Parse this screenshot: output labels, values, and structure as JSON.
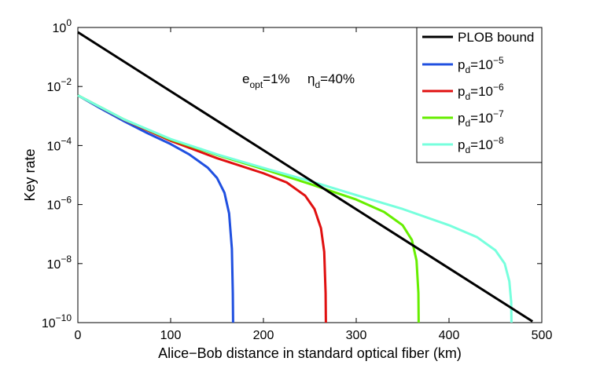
{
  "chart_data": {
    "type": "line",
    "title": "",
    "xlabel": "Alice−Bob distance in standard optical fiber (km)",
    "ylabel": "Key rate",
    "xlim": [
      0,
      500
    ],
    "ylim_log10": [
      -10,
      0
    ],
    "yscale": "log",
    "x_ticks": [
      0,
      100,
      200,
      300,
      400,
      500
    ],
    "y_ticks_exponent": [
      -10,
      -8,
      -6,
      -4,
      -2,
      0
    ],
    "y_tick_base": "10",
    "grid": false,
    "legend_position": "top-right",
    "annotations": [
      {
        "id": "eopt",
        "base": "e",
        "sub": "opt",
        "suffix": "=1%"
      },
      {
        "id": "etad",
        "base": "η",
        "sub": "d",
        "suffix": "=40%"
      }
    ],
    "series": [
      {
        "name": "PLOB bound",
        "legend_label": "PLOB bound",
        "color": "#000000",
        "x": [
          0,
          100,
          200,
          300,
          400,
          490
        ],
        "log10_y": [
          -0.16,
          -2.16,
          -4.16,
          -6.16,
          -8.16,
          -9.96
        ]
      },
      {
        "name": "pd=10^-5",
        "legend_base": "p",
        "legend_sub": "d",
        "legend_mid": "=10",
        "legend_sup": "−5",
        "color": "#2050e0",
        "x": [
          0,
          25,
          50,
          75,
          100,
          120,
          140,
          150,
          158,
          163,
          166,
          167,
          167.3
        ],
        "log10_y": [
          -2.3,
          -2.75,
          -3.18,
          -3.58,
          -3.95,
          -4.3,
          -4.75,
          -5.1,
          -5.6,
          -6.3,
          -7.5,
          -9.0,
          -10
        ]
      },
      {
        "name": "pd=10^-6",
        "legend_base": "p",
        "legend_sub": "d",
        "legend_mid": "=10",
        "legend_sup": "−6",
        "color": "#e01010",
        "x": [
          0,
          50,
          100,
          150,
          200,
          225,
          245,
          255,
          262,
          265.5,
          267,
          267.3
        ],
        "log10_y": [
          -2.3,
          -3.13,
          -3.84,
          -4.43,
          -4.94,
          -5.25,
          -5.7,
          -6.15,
          -6.8,
          -7.6,
          -9.0,
          -10
        ]
      },
      {
        "name": "pd=10^-7",
        "legend_base": "p",
        "legend_sub": "d",
        "legend_mid": "=10",
        "legend_sup": "−7",
        "color": "#66ee00",
        "x": [
          0,
          50,
          100,
          150,
          200,
          250,
          300,
          330,
          350,
          360,
          365,
          367,
          367.3
        ],
        "log10_y": [
          -2.3,
          -3.12,
          -3.8,
          -4.32,
          -4.8,
          -5.3,
          -5.83,
          -6.25,
          -6.7,
          -7.2,
          -7.9,
          -9.0,
          -10
        ]
      },
      {
        "name": "pd=10^-8",
        "legend_base": "p",
        "legend_sub": "d",
        "legend_mid": "=10",
        "legend_sup": "−8",
        "color": "#77ffdd",
        "x": [
          0,
          50,
          100,
          150,
          200,
          250,
          300,
          350,
          400,
          430,
          450,
          460,
          465,
          467,
          467.3
        ],
        "log10_y": [
          -2.3,
          -3.12,
          -3.78,
          -4.3,
          -4.76,
          -5.2,
          -5.68,
          -6.15,
          -6.7,
          -7.1,
          -7.55,
          -8.0,
          -8.6,
          -9.3,
          -10
        ]
      }
    ]
  }
}
